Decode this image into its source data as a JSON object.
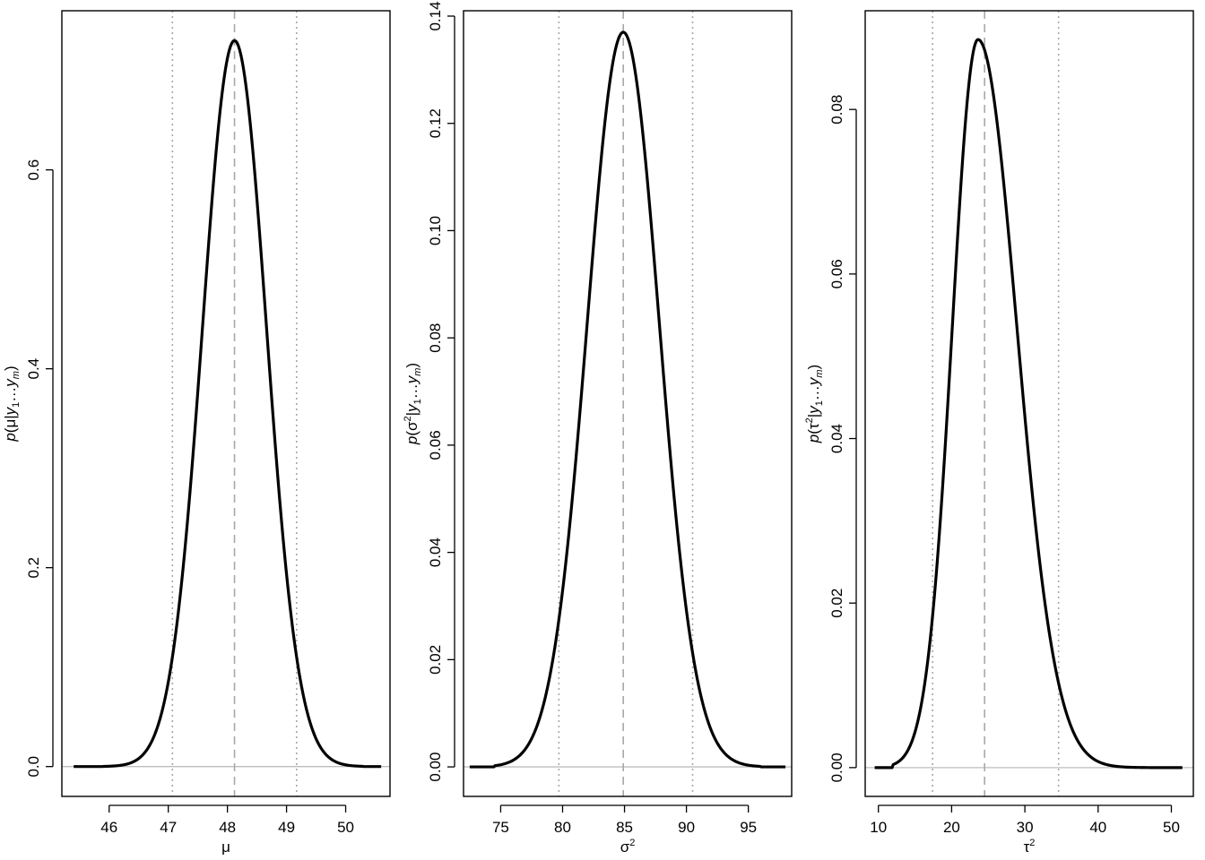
{
  "chart_data": [
    {
      "type": "line",
      "xlabel": "μ",
      "ylabel": {
        "p": "p",
        "open": "(",
        "param": "μ",
        "sup": "",
        "bar": "|",
        "y1": "y",
        "sub1": "1",
        "dots": "…",
        "ym": "y",
        "subm": "m",
        "close": ")"
      },
      "xticks": [
        46,
        47,
        48,
        49,
        50
      ],
      "xtick_labels": [
        "46",
        "47",
        "48",
        "49",
        "50"
      ],
      "yticks": [
        0.0,
        0.2,
        0.4,
        0.6
      ],
      "ytick_labels": [
        "0.0",
        "0.2",
        "0.4",
        "0.6"
      ],
      "xlim": [
        45.2,
        50.75
      ],
      "ylim": [
        -0.03,
        0.76
      ],
      "density": {
        "x_start": 45.4,
        "x_end": 50.6,
        "mean": 48.12,
        "sd_left": 0.54,
        "sd_right": 0.54,
        "peak": 0.73,
        "tail_start": 45.9,
        "tail_end": 50.3
      },
      "hline": 0.0,
      "vlines_dashed": [
        48.12
      ],
      "vlines_dotted": [
        47.07,
        49.17
      ]
    },
    {
      "type": "line",
      "xlabel": "σ",
      "xlabel_sup": "2",
      "ylabel": {
        "p": "p",
        "open": "(",
        "param": "σ",
        "sup": "2",
        "bar": "|",
        "y1": "y",
        "sub1": "1",
        "dots": "…",
        "ym": "y",
        "subm": "m",
        "close": ")"
      },
      "xticks": [
        75,
        80,
        85,
        90,
        95
      ],
      "xtick_labels": [
        "75",
        "80",
        "85",
        "90",
        "95"
      ],
      "yticks": [
        0.0,
        0.02,
        0.04,
        0.06,
        0.08,
        0.1,
        0.12,
        0.14
      ],
      "ytick_labels": [
        "0.00",
        "0.02",
        "0.04",
        "0.06",
        "0.08",
        "0.10",
        "0.12",
        "0.14"
      ],
      "xlim": [
        72.0,
        98.5
      ],
      "ylim": [
        -0.0055,
        0.141
      ],
      "density": {
        "x_start": 72.5,
        "x_end": 98.0,
        "mean": 84.9,
        "sd_left": 2.9,
        "sd_right": 2.9,
        "peak": 0.137,
        "tail_start": 74.5,
        "tail_end": 96.0
      },
      "hline": 0.0,
      "vlines_dashed": [
        84.9
      ],
      "vlines_dotted": [
        79.7,
        90.5
      ]
    },
    {
      "type": "line",
      "xlabel": "τ",
      "xlabel_sup": "2",
      "ylabel": {
        "p": "p",
        "open": "(",
        "param": "τ",
        "sup": "2",
        "bar": "|",
        "y1": "y",
        "sub1": "1",
        "dots": "…",
        "ym": "y",
        "subm": "m",
        "close": ")"
      },
      "xticks": [
        10,
        20,
        30,
        40,
        50
      ],
      "xtick_labels": [
        "10",
        "20",
        "30",
        "40",
        "50"
      ],
      "yticks": [
        0.0,
        0.02,
        0.04,
        0.06,
        0.08
      ],
      "ytick_labels": [
        "0.00",
        "0.02",
        "0.04",
        "0.06",
        "0.08"
      ],
      "xlim": [
        8.2,
        53.0
      ],
      "ylim": [
        -0.0035,
        0.092
      ],
      "density": {
        "x_start": 9.5,
        "x_end": 51.5,
        "mean": 23.6,
        "sd_left": 3.5,
        "sd_right": 5.3,
        "peak": 0.0885,
        "tail_start": 12.0,
        "tail_end": 47.0
      },
      "hline": 0.0,
      "vlines_dashed": [
        24.5
      ],
      "vlines_dotted": [
        17.4,
        34.6
      ]
    }
  ]
}
